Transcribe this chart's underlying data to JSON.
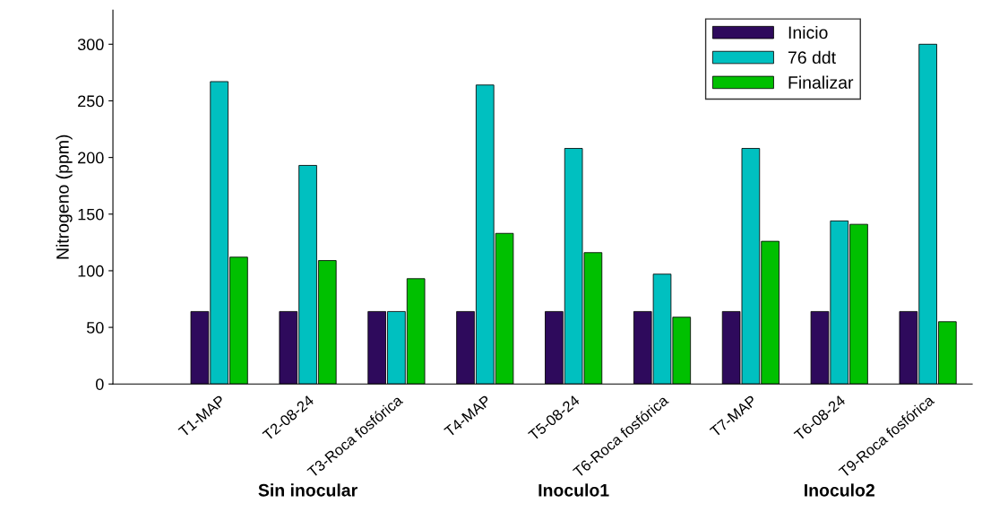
{
  "chart_data": {
    "type": "bar",
    "ylabel": "Nitrogeno (ppm)",
    "categories": [
      "T1-MAP",
      "T2-08-24",
      "T3-Roca fosfórica",
      "T4-MAP",
      "T5-08-24",
      "T6-Roca fosfórica",
      "T7-MAP",
      "T6-08-24",
      "T9-Roca fosfórica"
    ],
    "series": [
      {
        "name": "Inicio",
        "color": "#2e0a5c",
        "values": [
          64,
          64,
          64,
          64,
          64,
          64,
          64,
          64,
          64
        ]
      },
      {
        "name": "76 ddt",
        "color": "#00c0c0",
        "values": [
          267,
          193,
          64,
          264,
          208,
          97,
          208,
          144,
          300
        ]
      },
      {
        "name": "Finalizar",
        "color": "#00c000",
        "values": [
          112,
          109,
          93,
          133,
          116,
          59,
          126,
          141,
          55
        ]
      }
    ],
    "ylim": [
      0,
      330
    ],
    "yticks": [
      0,
      50,
      100,
      150,
      200,
      250,
      300
    ],
    "annotations": [
      "Sin inocular",
      "Inoculo1",
      "Inoculo2"
    ],
    "legend": "top right",
    "grid": false
  }
}
